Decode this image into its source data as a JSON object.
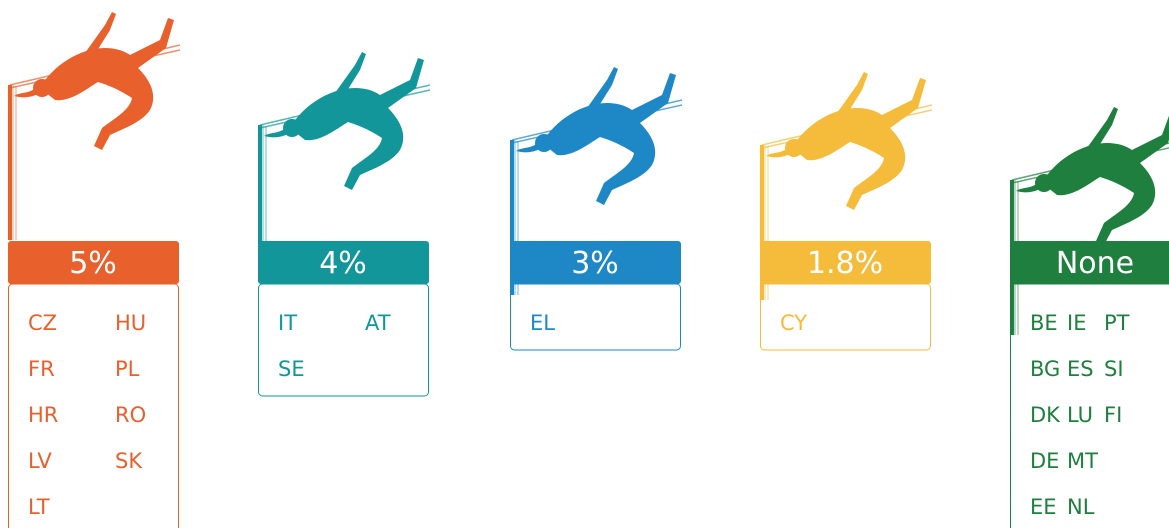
{
  "groups": [
    {
      "label": "5%",
      "color": "#e8602c",
      "countries": [
        [
          "CZ",
          "HU"
        ],
        [
          "FR",
          "PL"
        ],
        [
          "HR",
          "RO"
        ],
        [
          "LV",
          "SK"
        ],
        [
          "LT"
        ]
      ]
    },
    {
      "label": "4%",
      "color": "#13969a",
      "countries": [
        [
          "IT",
          "AT"
        ],
        [
          "SE"
        ]
      ]
    },
    {
      "label": "3%",
      "color": "#1e88c7",
      "countries": [
        [
          "EL"
        ]
      ]
    },
    {
      "label": "1.8%",
      "color": "#f5bb3a",
      "countries": [
        [
          "CY"
        ]
      ]
    },
    {
      "label": "None",
      "color": "#1e7f3e",
      "countries": [
        [
          "BE",
          "IE",
          "PT"
        ],
        [
          "BG",
          "ES",
          "SI"
        ],
        [
          "DK",
          "LU",
          "FI"
        ],
        [
          "DE",
          "MT"
        ],
        [
          "EE",
          "NL"
        ]
      ]
    }
  ]
}
